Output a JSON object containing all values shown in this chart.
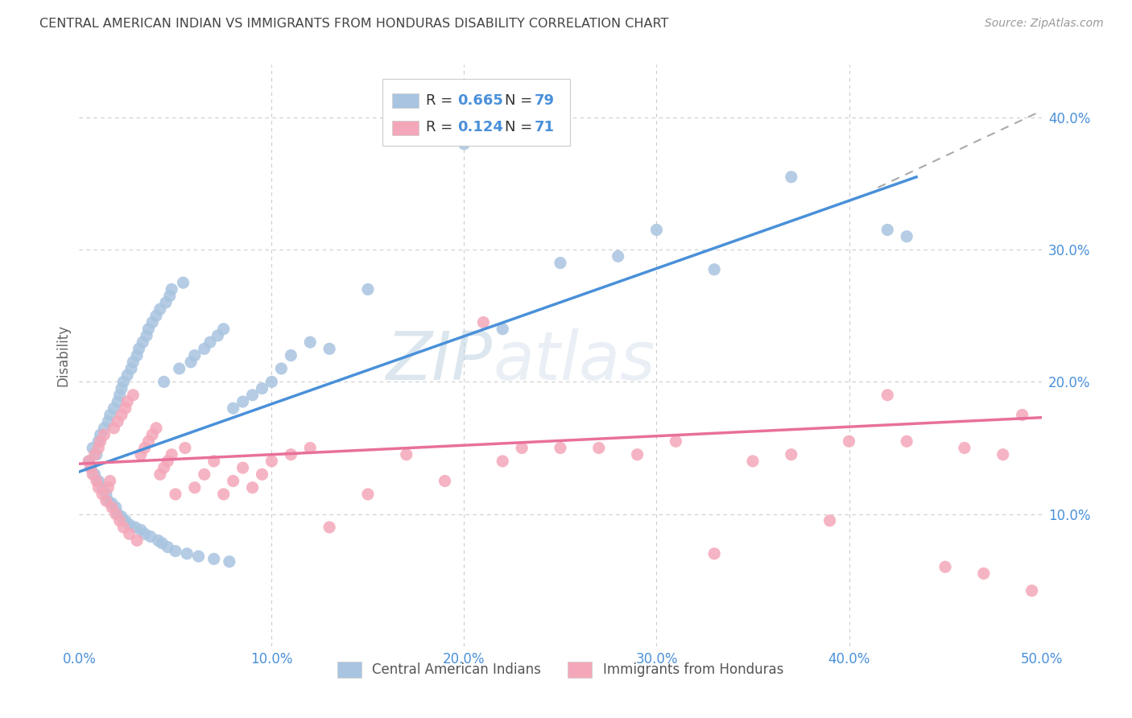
{
  "title": "CENTRAL AMERICAN INDIAN VS IMMIGRANTS FROM HONDURAS DISABILITY CORRELATION CHART",
  "source": "Source: ZipAtlas.com",
  "ylabel": "Disability",
  "xlim": [
    0.0,
    0.5
  ],
  "ylim": [
    0.0,
    0.44
  ],
  "xtick_labels": [
    "0.0%",
    "10.0%",
    "20.0%",
    "30.0%",
    "40.0%",
    "50.0%"
  ],
  "xtick_vals": [
    0.0,
    0.1,
    0.2,
    0.3,
    0.4,
    0.5
  ],
  "ytick_labels": [
    "10.0%",
    "20.0%",
    "30.0%",
    "40.0%"
  ],
  "ytick_vals": [
    0.1,
    0.2,
    0.3,
    0.4
  ],
  "blue_color": "#a8c4e0",
  "pink_color": "#f4a7b9",
  "blue_line_color": "#4a90d9",
  "pink_line_color": "#e8709a",
  "axis_label_color": "#4a90d9",
  "watermark_color": "#c5d9ee",
  "background_color": "#ffffff",
  "grid_color": "#cccccc",
  "title_color": "#444444",
  "source_color": "#999999",
  "blue_scatter": {
    "x": [
      0.005,
      0.006,
      0.007,
      0.008,
      0.009,
      0.01,
      0.01,
      0.011,
      0.012,
      0.013,
      0.014,
      0.015,
      0.015,
      0.016,
      0.017,
      0.018,
      0.019,
      0.02,
      0.02,
      0.021,
      0.022,
      0.022,
      0.023,
      0.024,
      0.025,
      0.026,
      0.027,
      0.028,
      0.029,
      0.03,
      0.031,
      0.032,
      0.033,
      0.034,
      0.035,
      0.036,
      0.037,
      0.038,
      0.04,
      0.041,
      0.042,
      0.043,
      0.044,
      0.045,
      0.046,
      0.047,
      0.048,
      0.05,
      0.052,
      0.054,
      0.056,
      0.058,
      0.06,
      0.062,
      0.065,
      0.068,
      0.07,
      0.072,
      0.075,
      0.078,
      0.08,
      0.085,
      0.09,
      0.095,
      0.1,
      0.105,
      0.11,
      0.12,
      0.13,
      0.15,
      0.2,
      0.22,
      0.25,
      0.28,
      0.3,
      0.33,
      0.37,
      0.42,
      0.43
    ],
    "y": [
      0.14,
      0.135,
      0.15,
      0.13,
      0.145,
      0.155,
      0.125,
      0.16,
      0.12,
      0.165,
      0.115,
      0.17,
      0.11,
      0.175,
      0.108,
      0.18,
      0.105,
      0.185,
      0.1,
      0.19,
      0.195,
      0.098,
      0.2,
      0.095,
      0.205,
      0.092,
      0.21,
      0.215,
      0.09,
      0.22,
      0.225,
      0.088,
      0.23,
      0.085,
      0.235,
      0.24,
      0.083,
      0.245,
      0.25,
      0.08,
      0.255,
      0.078,
      0.2,
      0.26,
      0.075,
      0.265,
      0.27,
      0.072,
      0.21,
      0.275,
      0.07,
      0.215,
      0.22,
      0.068,
      0.225,
      0.23,
      0.066,
      0.235,
      0.24,
      0.064,
      0.18,
      0.185,
      0.19,
      0.195,
      0.2,
      0.21,
      0.22,
      0.23,
      0.225,
      0.27,
      0.38,
      0.24,
      0.29,
      0.295,
      0.315,
      0.285,
      0.355,
      0.315,
      0.31
    ]
  },
  "pink_scatter": {
    "x": [
      0.005,
      0.006,
      0.007,
      0.008,
      0.009,
      0.01,
      0.01,
      0.011,
      0.012,
      0.013,
      0.014,
      0.015,
      0.016,
      0.017,
      0.018,
      0.019,
      0.02,
      0.021,
      0.022,
      0.023,
      0.024,
      0.025,
      0.026,
      0.028,
      0.03,
      0.032,
      0.034,
      0.036,
      0.038,
      0.04,
      0.042,
      0.044,
      0.046,
      0.048,
      0.05,
      0.055,
      0.06,
      0.065,
      0.07,
      0.075,
      0.08,
      0.085,
      0.09,
      0.095,
      0.1,
      0.11,
      0.12,
      0.13,
      0.15,
      0.17,
      0.19,
      0.21,
      0.22,
      0.23,
      0.25,
      0.27,
      0.29,
      0.31,
      0.33,
      0.35,
      0.37,
      0.39,
      0.4,
      0.42,
      0.43,
      0.45,
      0.46,
      0.47,
      0.48,
      0.49,
      0.495
    ],
    "y": [
      0.14,
      0.135,
      0.13,
      0.145,
      0.125,
      0.15,
      0.12,
      0.155,
      0.115,
      0.16,
      0.11,
      0.12,
      0.125,
      0.105,
      0.165,
      0.1,
      0.17,
      0.095,
      0.175,
      0.09,
      0.18,
      0.185,
      0.085,
      0.19,
      0.08,
      0.145,
      0.15,
      0.155,
      0.16,
      0.165,
      0.13,
      0.135,
      0.14,
      0.145,
      0.115,
      0.15,
      0.12,
      0.13,
      0.14,
      0.115,
      0.125,
      0.135,
      0.12,
      0.13,
      0.14,
      0.145,
      0.15,
      0.09,
      0.115,
      0.145,
      0.125,
      0.245,
      0.14,
      0.15,
      0.15,
      0.15,
      0.145,
      0.155,
      0.07,
      0.14,
      0.145,
      0.095,
      0.155,
      0.19,
      0.155,
      0.06,
      0.15,
      0.055,
      0.145,
      0.175,
      0.042
    ]
  },
  "blue_line": {
    "x0": 0.0,
    "x1": 0.435,
    "y0": 0.132,
    "y1": 0.355
  },
  "pink_line": {
    "x0": 0.0,
    "x1": 0.5,
    "y0": 0.138,
    "y1": 0.173
  },
  "dashed_line": {
    "x0": 0.415,
    "x1": 0.5,
    "y0": 0.347,
    "y1": 0.405
  },
  "legend_items": [
    {
      "r": "0.665",
      "n": "79"
    },
    {
      "r": "0.124",
      "n": "71"
    }
  ],
  "bottom_legend": [
    "Central American Indians",
    "Immigrants from Honduras"
  ]
}
